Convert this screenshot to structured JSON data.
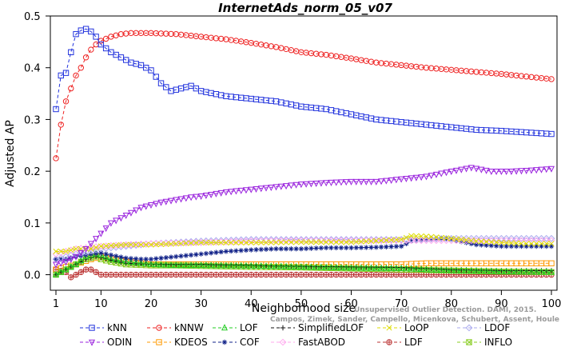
{
  "chart_data": {
    "type": "line",
    "title": "InternetAds_norm_05_v07",
    "xlabel": "Neighborhood size",
    "ylabel": "Adjusted AP",
    "xlim": [
      1,
      100
    ],
    "ylim": [
      -0.03,
      0.5
    ],
    "x_ticks": [
      1,
      10,
      20,
      30,
      40,
      50,
      60,
      70,
      80,
      90,
      100
    ],
    "y_ticks": [
      0.0,
      0.1,
      0.2,
      0.3,
      0.4,
      0.5
    ],
    "y_tick_labels": [
      "0.0",
      "0.1",
      "0.2",
      "0.3",
      "0.4",
      "0.5"
    ],
    "grid": false,
    "legend_placement": "bottom",
    "series": [
      {
        "name": "kNN",
        "color": "#2233dd",
        "marker": "square",
        "dash": "4,3",
        "points": [
          [
            1,
            0.32
          ],
          [
            2,
            0.385
          ],
          [
            3,
            0.39
          ],
          [
            4,
            0.43
          ],
          [
            5,
            0.465
          ],
          [
            6,
            0.472
          ],
          [
            7,
            0.475
          ],
          [
            8,
            0.47
          ],
          [
            9,
            0.46
          ],
          [
            10,
            0.445
          ],
          [
            12,
            0.43
          ],
          [
            14,
            0.42
          ],
          [
            16,
            0.41
          ],
          [
            18,
            0.405
          ],
          [
            20,
            0.395
          ],
          [
            22,
            0.37
          ],
          [
            24,
            0.355
          ],
          [
            26,
            0.36
          ],
          [
            28,
            0.365
          ],
          [
            30,
            0.355
          ],
          [
            35,
            0.345
          ],
          [
            40,
            0.34
          ],
          [
            45,
            0.335
          ],
          [
            50,
            0.325
          ],
          [
            55,
            0.32
          ],
          [
            60,
            0.31
          ],
          [
            65,
            0.3
          ],
          [
            70,
            0.295
          ],
          [
            75,
            0.29
          ],
          [
            80,
            0.285
          ],
          [
            85,
            0.28
          ],
          [
            90,
            0.278
          ],
          [
            95,
            0.275
          ],
          [
            100,
            0.272
          ]
        ]
      },
      {
        "name": "kNNW",
        "color": "#ee2222",
        "marker": "circle",
        "dash": "4,3",
        "points": [
          [
            1,
            0.225
          ],
          [
            2,
            0.29
          ],
          [
            3,
            0.335
          ],
          [
            4,
            0.36
          ],
          [
            5,
            0.385
          ],
          [
            6,
            0.4
          ],
          [
            7,
            0.42
          ],
          [
            8,
            0.435
          ],
          [
            9,
            0.445
          ],
          [
            10,
            0.452
          ],
          [
            12,
            0.46
          ],
          [
            14,
            0.465
          ],
          [
            16,
            0.467
          ],
          [
            18,
            0.467
          ],
          [
            20,
            0.467
          ],
          [
            25,
            0.465
          ],
          [
            30,
            0.46
          ],
          [
            35,
            0.455
          ],
          [
            40,
            0.448
          ],
          [
            45,
            0.44
          ],
          [
            50,
            0.43
          ],
          [
            55,
            0.425
          ],
          [
            60,
            0.418
          ],
          [
            65,
            0.41
          ],
          [
            70,
            0.405
          ],
          [
            75,
            0.4
          ],
          [
            80,
            0.396
          ],
          [
            85,
            0.392
          ],
          [
            90,
            0.388
          ],
          [
            95,
            0.383
          ],
          [
            100,
            0.378
          ]
        ]
      },
      {
        "name": "LOF",
        "color": "#22cc22",
        "marker": "triangle-up",
        "dash": "4,3",
        "points": [
          [
            1,
            0.0
          ],
          [
            3,
            0.01
          ],
          [
            5,
            0.02
          ],
          [
            7,
            0.035
          ],
          [
            9,
            0.04
          ],
          [
            10,
            0.038
          ],
          [
            12,
            0.03
          ],
          [
            15,
            0.025
          ],
          [
            20,
            0.02
          ],
          [
            25,
            0.018
          ],
          [
            30,
            0.018
          ],
          [
            40,
            0.017
          ],
          [
            50,
            0.015
          ],
          [
            60,
            0.013
          ],
          [
            70,
            0.012
          ],
          [
            75,
            0.01
          ],
          [
            80,
            0.008
          ],
          [
            90,
            0.006
          ],
          [
            100,
            0.005
          ]
        ]
      },
      {
        "name": "SimplifiedLOF",
        "color": "#111111",
        "marker": "plus",
        "dash": "4,3",
        "points": [
          [
            1,
            0.0
          ],
          [
            3,
            0.01
          ],
          [
            5,
            0.02
          ],
          [
            7,
            0.03
          ],
          [
            9,
            0.035
          ],
          [
            10,
            0.033
          ],
          [
            12,
            0.028
          ],
          [
            15,
            0.022
          ],
          [
            20,
            0.02
          ],
          [
            25,
            0.02
          ],
          [
            30,
            0.02
          ],
          [
            40,
            0.018
          ],
          [
            50,
            0.016
          ],
          [
            60,
            0.015
          ],
          [
            70,
            0.014
          ],
          [
            75,
            0.012
          ],
          [
            80,
            0.01
          ],
          [
            90,
            0.008
          ],
          [
            100,
            0.008
          ]
        ]
      },
      {
        "name": "LoOP",
        "color": "#dddd00",
        "marker": "x",
        "dash": "4,3",
        "points": [
          [
            1,
            0.045
          ],
          [
            3,
            0.045
          ],
          [
            5,
            0.05
          ],
          [
            8,
            0.05
          ],
          [
            10,
            0.055
          ],
          [
            15,
            0.058
          ],
          [
            20,
            0.058
          ],
          [
            25,
            0.06
          ],
          [
            30,
            0.062
          ],
          [
            40,
            0.062
          ],
          [
            50,
            0.063
          ],
          [
            60,
            0.063
          ],
          [
            70,
            0.068
          ],
          [
            72,
            0.075
          ],
          [
            75,
            0.074
          ],
          [
            80,
            0.07
          ],
          [
            85,
            0.065
          ],
          [
            90,
            0.062
          ],
          [
            95,
            0.06
          ],
          [
            100,
            0.06
          ]
        ]
      },
      {
        "name": "LDOF",
        "color": "#aaaaee",
        "marker": "diamond",
        "dash": "4,3",
        "points": [
          [
            1,
            0.03
          ],
          [
            5,
            0.04
          ],
          [
            10,
            0.05
          ],
          [
            15,
            0.055
          ],
          [
            20,
            0.06
          ],
          [
            30,
            0.065
          ],
          [
            40,
            0.068
          ],
          [
            50,
            0.068
          ],
          [
            60,
            0.068
          ],
          [
            70,
            0.068
          ],
          [
            80,
            0.07
          ],
          [
            90,
            0.07
          ],
          [
            100,
            0.07
          ]
        ]
      },
      {
        "name": "ODIN",
        "color": "#9922dd",
        "marker": "triangle-down",
        "dash": "4,3",
        "points": [
          [
            1,
            0.02
          ],
          [
            3,
            0.025
          ],
          [
            5,
            0.035
          ],
          [
            7,
            0.05
          ],
          [
            9,
            0.07
          ],
          [
            10,
            0.08
          ],
          [
            12,
            0.1
          ],
          [
            14,
            0.11
          ],
          [
            16,
            0.12
          ],
          [
            18,
            0.13
          ],
          [
            20,
            0.135
          ],
          [
            22,
            0.14
          ],
          [
            25,
            0.145
          ],
          [
            28,
            0.15
          ],
          [
            30,
            0.152
          ],
          [
            35,
            0.16
          ],
          [
            40,
            0.165
          ],
          [
            45,
            0.17
          ],
          [
            50,
            0.175
          ],
          [
            55,
            0.178
          ],
          [
            60,
            0.18
          ],
          [
            65,
            0.18
          ],
          [
            70,
            0.185
          ],
          [
            75,
            0.19
          ],
          [
            80,
            0.2
          ],
          [
            84,
            0.207
          ],
          [
            88,
            0.2
          ],
          [
            92,
            0.2
          ],
          [
            96,
            0.202
          ],
          [
            100,
            0.205
          ]
        ]
      },
      {
        "name": "KDEOS",
        "color": "#ff9900",
        "marker": "square",
        "dash": "4,3",
        "points": [
          [
            1,
            0.01
          ],
          [
            5,
            0.02
          ],
          [
            8,
            0.03
          ],
          [
            10,
            0.035
          ],
          [
            12,
            0.03
          ],
          [
            15,
            0.025
          ],
          [
            20,
            0.02
          ],
          [
            30,
            0.02
          ],
          [
            40,
            0.02
          ],
          [
            50,
            0.02
          ],
          [
            60,
            0.02
          ],
          [
            70,
            0.02
          ],
          [
            75,
            0.022
          ],
          [
            80,
            0.022
          ],
          [
            90,
            0.022
          ],
          [
            100,
            0.022
          ]
        ]
      },
      {
        "name": "COF",
        "color": "#112288",
        "marker": "asterisk",
        "dash": "4,3",
        "points": [
          [
            1,
            0.03
          ],
          [
            3,
            0.03
          ],
          [
            5,
            0.035
          ],
          [
            8,
            0.04
          ],
          [
            10,
            0.042
          ],
          [
            12,
            0.038
          ],
          [
            15,
            0.032
          ],
          [
            18,
            0.03
          ],
          [
            20,
            0.03
          ],
          [
            25,
            0.035
          ],
          [
            30,
            0.04
          ],
          [
            35,
            0.045
          ],
          [
            40,
            0.048
          ],
          [
            45,
            0.05
          ],
          [
            50,
            0.05
          ],
          [
            55,
            0.052
          ],
          [
            60,
            0.052
          ],
          [
            65,
            0.053
          ],
          [
            70,
            0.055
          ],
          [
            72,
            0.065
          ],
          [
            75,
            0.068
          ],
          [
            78,
            0.07
          ],
          [
            80,
            0.068
          ],
          [
            85,
            0.058
          ],
          [
            90,
            0.055
          ],
          [
            95,
            0.055
          ],
          [
            100,
            0.055
          ]
        ]
      },
      {
        "name": "FastABOD",
        "color": "#ffaaee",
        "marker": "diamond",
        "dash": "4,3",
        "points": [
          [
            1,
            0.04
          ],
          [
            5,
            0.05
          ],
          [
            10,
            0.055
          ],
          [
            15,
            0.058
          ],
          [
            20,
            0.06
          ],
          [
            30,
            0.062
          ],
          [
            40,
            0.065
          ],
          [
            50,
            0.066
          ],
          [
            60,
            0.066
          ],
          [
            70,
            0.066
          ],
          [
            80,
            0.066
          ],
          [
            90,
            0.066
          ],
          [
            100,
            0.066
          ]
        ]
      },
      {
        "name": "LDF",
        "color": "#bb3333",
        "marker": "circle-plus",
        "dash": "4,3",
        "points": [
          [
            1,
            0.01
          ],
          [
            3,
            0.005
          ],
          [
            4,
            -0.005
          ],
          [
            5,
            0.0
          ],
          [
            6,
            0.005
          ],
          [
            7,
            0.01
          ],
          [
            8,
            0.01
          ],
          [
            9,
            0.005
          ],
          [
            10,
            0.0
          ],
          [
            12,
            0.0
          ],
          [
            15,
            0.0
          ],
          [
            18,
            0.0
          ],
          [
            20,
            0.0
          ],
          [
            25,
            0.0
          ],
          [
            30,
            0.0
          ],
          [
            40,
            0.0
          ],
          [
            50,
            0.0
          ],
          [
            60,
            0.0
          ],
          [
            70,
            0.0
          ],
          [
            80,
            0.0
          ],
          [
            90,
            0.0
          ],
          [
            100,
            0.0
          ]
        ]
      },
      {
        "name": "INFLO",
        "color": "#88cc22",
        "marker": "square-x",
        "dash": "4,3",
        "points": [
          [
            1,
            0.0
          ],
          [
            3,
            0.01
          ],
          [
            5,
            0.02
          ],
          [
            7,
            0.03
          ],
          [
            9,
            0.035
          ],
          [
            10,
            0.03
          ],
          [
            12,
            0.025
          ],
          [
            15,
            0.02
          ],
          [
            20,
            0.018
          ],
          [
            25,
            0.018
          ],
          [
            30,
            0.017
          ],
          [
            40,
            0.015
          ],
          [
            50,
            0.014
          ],
          [
            60,
            0.012
          ],
          [
            70,
            0.01
          ],
          [
            80,
            0.008
          ],
          [
            90,
            0.006
          ],
          [
            100,
            0.005
          ]
        ]
      }
    ],
    "legend_layout": [
      [
        "kNN",
        "kNNW",
        "LOF",
        "SimplifiedLOF",
        "LoOP",
        "LDOF"
      ],
      [
        "ODIN",
        "KDEOS",
        "COF",
        "FastABOD",
        "LDF",
        "INFLO"
      ]
    ]
  },
  "watermark": {
    "line1": "Unsupervised Outlier Detection. DAMI, 2015.",
    "line2": "Campos, Zimek, Sander, Campello, Micenkova, Schubert, Assent, Houle"
  }
}
